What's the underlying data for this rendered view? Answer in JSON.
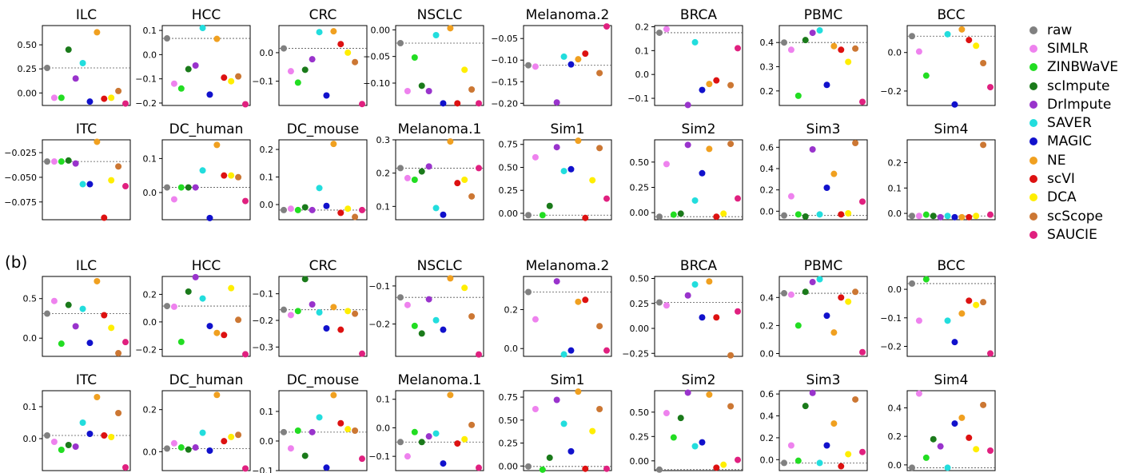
{
  "legend": {
    "items": [
      {
        "name": "raw",
        "color": "#808080"
      },
      {
        "name": "SIMLR",
        "color": "#ee82ee"
      },
      {
        "name": "ZINBWaVE",
        "color": "#22dd22"
      },
      {
        "name": "scImpute",
        "color": "#1a7a1a"
      },
      {
        "name": "DrImpute",
        "color": "#9933cc"
      },
      {
        "name": "SAVER",
        "color": "#22dddd"
      },
      {
        "name": "MAGIC",
        "color": "#1111cc"
      },
      {
        "name": "NE",
        "color": "#f0a020"
      },
      {
        "name": "scVI",
        "color": "#dd1111"
      },
      {
        "name": "DCA",
        "color": "#ffee00"
      },
      {
        "name": "scScope",
        "color": "#cc7733"
      },
      {
        "name": "SAUCIE",
        "color": "#e0207f"
      }
    ]
  },
  "section_b_label": "(b)",
  "chart_data": [
    {
      "type": "scatter",
      "section": "a",
      "title": "ILC",
      "ylim": [
        -0.13,
        0.7
      ],
      "yticks": [
        {
          "v": 0.5,
          "label": "0.50"
        },
        {
          "v": 0.25,
          "label": "0.25"
        },
        {
          "v": 0.0,
          "label": "0.00"
        }
      ],
      "values": [
        0.26,
        -0.05,
        -0.05,
        0.45,
        0.15,
        0.31,
        -0.09,
        0.63,
        -0.06,
        -0.05,
        0.02,
        -0.11
      ]
    },
    {
      "type": "scatter",
      "section": "a",
      "title": "HCC",
      "ylim": [
        -0.21,
        0.12
      ],
      "yticks": [
        {
          "v": 0.1,
          "label": "0.1"
        },
        {
          "v": 0.0,
          "label": "0.0"
        },
        {
          "v": -0.1,
          "label": "−0.1"
        },
        {
          "v": -0.2,
          "label": "−0.2"
        }
      ],
      "values": [
        0.067,
        -0.12,
        -0.14,
        -0.06,
        -0.045,
        0.11,
        -0.165,
        0.065,
        -0.095,
        -0.11,
        -0.09,
        -0.205
      ]
    },
    {
      "type": "scatter",
      "section": "a",
      "title": "CRC",
      "ylim": [
        -0.185,
        0.095
      ],
      "yticks": [
        {
          "v": 0.0,
          "label": "0.0"
        },
        {
          "v": -0.1,
          "label": "−0.1"
        }
      ],
      "values": [
        0.015,
        -0.065,
        -0.105,
        -0.06,
        -0.023,
        0.072,
        -0.15,
        0.075,
        0.03,
        0.0,
        -0.033,
        -0.18
      ]
    },
    {
      "type": "scatter",
      "section": "a",
      "title": "NSCLC",
      "ylim": [
        -0.142,
        0.008
      ],
      "yticks": [
        {
          "v": 0.0,
          "label": "0.00"
        },
        {
          "v": -0.05,
          "label": "−0.05"
        },
        {
          "v": -0.1,
          "label": "−0.10"
        }
      ],
      "values": [
        -0.025,
        -0.115,
        -0.052,
        -0.105,
        -0.115,
        -0.01,
        -0.138,
        0.003,
        -0.138,
        -0.075,
        -0.112,
        -0.138
      ]
    },
    {
      "type": "scatter",
      "section": "a",
      "title": "Melanoma.2",
      "ylim": [
        -0.205,
        -0.02
      ],
      "yticks": [
        {
          "v": -0.05,
          "label": "−0.05"
        },
        {
          "v": -0.1,
          "label": "−0.10"
        },
        {
          "v": -0.15,
          "label": "−0.15"
        },
        {
          "v": -0.2,
          "label": "−0.20"
        }
      ],
      "values": [
        -0.112,
        -0.115,
        null,
        null,
        -0.198,
        -0.092,
        -0.11,
        -0.098,
        -0.085,
        null,
        -0.13,
        -0.022
      ]
    },
    {
      "type": "scatter",
      "section": "a",
      "title": "BRCA",
      "ylim": [
        -0.13,
        0.205
      ],
      "yticks": [
        {
          "v": 0.2,
          "label": "0.2"
        },
        {
          "v": 0.1,
          "label": "0.1"
        },
        {
          "v": 0.0,
          "label": "0.0"
        },
        {
          "v": -0.1,
          "label": "−0.1"
        }
      ],
      "values": [
        0.175,
        0.19,
        null,
        null,
        -0.128,
        0.135,
        -0.065,
        -0.04,
        -0.025,
        null,
        -0.045,
        0.11
      ]
    },
    {
      "type": "scatter",
      "section": "a",
      "title": "PBMC",
      "ylim": [
        0.14,
        0.47
      ],
      "yticks": [
        {
          "v": 0.4,
          "label": "0.4"
        },
        {
          "v": 0.3,
          "label": "0.3"
        },
        {
          "v": 0.2,
          "label": "0.2"
        }
      ],
      "values": [
        0.4,
        0.37,
        0.18,
        0.41,
        0.44,
        0.45,
        0.225,
        0.385,
        0.37,
        0.32,
        0.375,
        0.155
      ]
    },
    {
      "type": "scatter",
      "section": "a",
      "title": "BCC",
      "ylim": [
        -0.275,
        0.14
      ],
      "yticks": [
        {
          "v": 0.0,
          "label": "0.0"
        },
        {
          "v": -0.2,
          "label": "−0.2"
        }
      ],
      "values": [
        0.085,
        0.005,
        -0.12,
        null,
        null,
        0.095,
        -0.27,
        0.12,
        0.065,
        0.035,
        -0.055,
        -0.18
      ]
    },
    {
      "type": "scatter",
      "section": "a",
      "title": "ITC",
      "ylim": [
        -0.093,
        -0.012
      ],
      "yticks": [
        {
          "v": -0.025,
          "label": "−0.025"
        },
        {
          "v": -0.05,
          "label": "−0.050"
        },
        {
          "v": -0.075,
          "label": "−0.075"
        }
      ],
      "values": [
        -0.034,
        -0.034,
        -0.034,
        -0.033,
        -0.036,
        -0.057,
        -0.057,
        -0.014,
        -0.091,
        -0.053,
        -0.039,
        -0.059
      ]
    },
    {
      "type": "scatter",
      "section": "a",
      "title": "DC_human",
      "ylim": [
        -0.08,
        0.155
      ],
      "yticks": [
        {
          "v": 0.1,
          "label": "0.1"
        },
        {
          "v": 0.0,
          "label": "0.0"
        }
      ],
      "values": [
        0.015,
        -0.02,
        0.015,
        0.015,
        0.015,
        0.065,
        -0.075,
        0.14,
        0.05,
        0.05,
        0.045,
        -0.025
      ]
    },
    {
      "type": "scatter",
      "section": "a",
      "title": "DC_mouse",
      "ylim": [
        -0.055,
        0.235
      ],
      "yticks": [
        {
          "v": 0.2,
          "label": "0.2"
        },
        {
          "v": 0.1,
          "label": "0.1"
        },
        {
          "v": 0.0,
          "label": "0.0"
        }
      ],
      "values": [
        -0.02,
        -0.015,
        -0.02,
        -0.01,
        -0.02,
        0.06,
        -0.005,
        0.22,
        -0.03,
        -0.015,
        -0.045,
        -0.02
      ]
    },
    {
      "type": "scatter",
      "section": "a",
      "title": "Melanoma.1",
      "ylim": [
        0.06,
        0.3
      ],
      "yticks": [
        {
          "v": 0.3,
          "label": "0.3"
        },
        {
          "v": 0.2,
          "label": "0.2"
        },
        {
          "v": 0.1,
          "label": "0.1"
        }
      ],
      "values": [
        0.215,
        0.185,
        0.18,
        0.205,
        0.22,
        0.095,
        0.075,
        0.295,
        0.17,
        0.18,
        0.13,
        0.215
      ]
    },
    {
      "type": "scatter",
      "section": "a",
      "title": "Sim1",
      "ylim": [
        -0.07,
        0.8
      ],
      "yticks": [
        {
          "v": 0.75,
          "label": "0.75"
        },
        {
          "v": 0.5,
          "label": "0.50"
        },
        {
          "v": 0.25,
          "label": "0.25"
        },
        {
          "v": 0.0,
          "label": "0.00"
        }
      ],
      "values": [
        -0.02,
        0.61,
        -0.02,
        0.08,
        0.72,
        0.46,
        0.48,
        0.79,
        -0.05,
        0.36,
        0.71,
        0.16
      ]
    },
    {
      "type": "scatter",
      "section": "a",
      "title": "Sim2",
      "ylim": [
        -0.07,
        0.72
      ],
      "yticks": [
        {
          "v": 0.5,
          "label": "0.50"
        },
        {
          "v": 0.25,
          "label": "0.25"
        },
        {
          "v": 0.0,
          "label": "0.00"
        }
      ],
      "values": [
        -0.04,
        0.48,
        -0.02,
        -0.01,
        0.67,
        0.12,
        0.39,
        0.63,
        -0.04,
        -0.01,
        0.68,
        0.14
      ]
    },
    {
      "type": "scatter",
      "section": "a",
      "title": "Sim3",
      "ylim": [
        -0.08,
        0.67
      ],
      "yticks": [
        {
          "v": 0.6,
          "label": "0.6"
        },
        {
          "v": 0.4,
          "label": "0.4"
        },
        {
          "v": 0.2,
          "label": "0.2"
        },
        {
          "v": 0.0,
          "label": "0.0"
        }
      ],
      "values": [
        -0.04,
        0.14,
        -0.03,
        -0.05,
        0.58,
        -0.03,
        0.22,
        0.35,
        -0.03,
        -0.02,
        0.64,
        0.09
      ]
    },
    {
      "type": "scatter",
      "section": "a",
      "title": "Sim4",
      "ylim": [
        -0.025,
        0.29
      ],
      "yticks": [
        {
          "v": 0.2,
          "label": "0.2"
        },
        {
          "v": 0.1,
          "label": "0.1"
        },
        {
          "v": 0.0,
          "label": "0.0"
        }
      ],
      "values": [
        -0.01,
        -0.01,
        -0.005,
        -0.01,
        -0.015,
        -0.01,
        -0.015,
        -0.015,
        -0.015,
        -0.01,
        0.27,
        -0.005
      ]
    },
    {
      "type": "scatter",
      "section": "b",
      "title": "ILC",
      "ylim": [
        -0.23,
        0.78
      ],
      "yticks": [
        {
          "v": 0.5,
          "label": "0.5"
        },
        {
          "v": 0.0,
          "label": "0.0"
        }
      ],
      "values": [
        0.31,
        0.47,
        -0.07,
        0.42,
        0.15,
        0.37,
        -0.06,
        0.72,
        0.29,
        0.13,
        -0.19,
        -0.05
      ]
    },
    {
      "type": "scatter",
      "section": "b",
      "title": "HCC",
      "ylim": [
        -0.25,
        0.33
      ],
      "yticks": [
        {
          "v": 0.2,
          "label": "0.2"
        },
        {
          "v": 0.0,
          "label": "0.0"
        },
        {
          "v": -0.2,
          "label": "−0.2"
        }
      ],
      "values": [
        0.115,
        0.11,
        -0.145,
        0.22,
        0.325,
        0.17,
        -0.03,
        -0.08,
        -0.095,
        0.245,
        0.015,
        -0.235
      ]
    },
    {
      "type": "scatter",
      "section": "b",
      "title": "CRC",
      "ylim": [
        -0.335,
        -0.035
      ],
      "yticks": [
        {
          "v": -0.1,
          "label": "−0.1"
        },
        {
          "v": -0.2,
          "label": "−0.2"
        },
        {
          "v": -0.3,
          "label": "−0.3"
        }
      ],
      "values": [
        -0.16,
        -0.18,
        -0.165,
        -0.045,
        -0.14,
        -0.17,
        -0.23,
        -0.15,
        -0.235,
        -0.165,
        -0.175,
        -0.325
      ]
    },
    {
      "type": "scatter",
      "section": "b",
      "title": "NSCLC",
      "ylim": [
        -0.285,
        -0.075
      ],
      "yticks": [
        {
          "v": -0.1,
          "label": "−0.1"
        },
        {
          "v": -0.2,
          "label": "−0.2"
        }
      ],
      "values": [
        -0.13,
        -0.15,
        -0.205,
        -0.225,
        -0.135,
        -0.19,
        -0.215,
        -0.08,
        null,
        -0.105,
        -0.18,
        -0.28
      ]
    },
    {
      "type": "scatter",
      "section": "b",
      "title": "Melanoma.2",
      "ylim": [
        -0.04,
        0.37
      ],
      "yticks": [
        {
          "v": 0.2,
          "label": "0.2"
        },
        {
          "v": 0.0,
          "label": "0.0"
        }
      ],
      "values": [
        0.29,
        0.15,
        null,
        null,
        0.345,
        -0.03,
        -0.01,
        0.24,
        0.25,
        null,
        0.115,
        -0.01
      ]
    },
    {
      "type": "scatter",
      "section": "b",
      "title": "BRCA",
      "ylim": [
        -0.28,
        0.52
      ],
      "yticks": [
        {
          "v": 0.5,
          "label": "0.50"
        },
        {
          "v": 0.25,
          "label": "0.25"
        },
        {
          "v": 0.0,
          "label": "0.00"
        },
        {
          "v": -0.25,
          "label": "−0.25"
        }
      ],
      "values": [
        0.26,
        0.23,
        null,
        null,
        0.33,
        0.44,
        0.11,
        0.47,
        0.11,
        null,
        -0.27,
        0.17
      ]
    },
    {
      "type": "scatter",
      "section": "b",
      "title": "PBMC",
      "ylim": [
        -0.02,
        0.55
      ],
      "yticks": [
        {
          "v": 0.4,
          "label": "0.4"
        },
        {
          "v": 0.2,
          "label": "0.2"
        },
        {
          "v": 0.0,
          "label": "0.0"
        }
      ],
      "values": [
        0.43,
        0.42,
        0.2,
        0.44,
        0.51,
        0.53,
        0.27,
        0.15,
        0.4,
        0.37,
        0.44,
        0.01
      ]
    },
    {
      "type": "scatter",
      "section": "b",
      "title": "BCC",
      "ylim": [
        -0.235,
        0.045
      ],
      "yticks": [
        {
          "v": 0.0,
          "label": "0.0"
        },
        {
          "v": -0.1,
          "label": "−0.1"
        },
        {
          "v": -0.2,
          "label": "−0.2"
        }
      ],
      "values": [
        0.02,
        -0.11,
        0.035,
        null,
        null,
        -0.11,
        -0.185,
        -0.085,
        -0.04,
        -0.055,
        -0.045,
        -0.225
      ]
    },
    {
      "type": "scatter",
      "section": "b",
      "title": "ITC",
      "ylim": [
        -0.1,
        0.15
      ],
      "yticks": [
        {
          "v": 0.1,
          "label": "0.1"
        },
        {
          "v": 0.0,
          "label": "0.0"
        }
      ],
      "values": [
        0.01,
        -0.01,
        -0.035,
        -0.02,
        -0.025,
        0.05,
        0.015,
        0.13,
        0.01,
        0.005,
        0.08,
        -0.09
      ]
    },
    {
      "type": "scatter",
      "section": "b",
      "title": "DC_human",
      "ylim": [
        -0.09,
        0.29
      ],
      "yticks": [
        {
          "v": 0.2,
          "label": "0.2"
        },
        {
          "v": 0.0,
          "label": "0.0"
        }
      ],
      "values": [
        0.015,
        0.04,
        0.02,
        0.01,
        0.02,
        0.09,
        0.005,
        0.27,
        0.05,
        0.07,
        0.08,
        -0.08
      ]
    },
    {
      "type": "scatter",
      "section": "b",
      "title": "DC_mouse",
      "ylim": [
        -0.1,
        0.17
      ],
      "yticks": [
        {
          "v": 0.1,
          "label": "0.1"
        },
        {
          "v": 0.0,
          "label": "0.0"
        },
        {
          "v": -0.1,
          "label": "−0.1"
        }
      ],
      "values": [
        0.03,
        -0.025,
        0.035,
        -0.05,
        0.03,
        0.08,
        -0.09,
        0.155,
        0.06,
        0.04,
        0.035,
        -0.06
      ]
    },
    {
      "type": "scatter",
      "section": "b",
      "title": "Melanoma.1",
      "ylim": [
        -0.15,
        0.13
      ],
      "yticks": [
        {
          "v": 0.1,
          "label": "0.1"
        },
        {
          "v": 0.0,
          "label": "0.0"
        },
        {
          "v": -0.1,
          "label": "−0.1"
        }
      ],
      "values": [
        -0.05,
        -0.1,
        -0.015,
        -0.05,
        -0.03,
        -0.02,
        -0.125,
        0.115,
        -0.055,
        -0.04,
        0.01,
        -0.14
      ]
    },
    {
      "type": "scatter",
      "section": "b",
      "title": "Sim1",
      "ylim": [
        -0.05,
        0.82
      ],
      "yticks": [
        {
          "v": 0.75,
          "label": "0.75"
        },
        {
          "v": 0.5,
          "label": "0.50"
        },
        {
          "v": 0.25,
          "label": "0.25"
        },
        {
          "v": 0.0,
          "label": "0.00"
        }
      ],
      "values": [
        -0.005,
        0.62,
        -0.04,
        0.09,
        0.72,
        0.46,
        0.16,
        0.81,
        -0.03,
        0.38,
        0.62,
        -0.03
      ]
    },
    {
      "type": "scatter",
      "section": "b",
      "title": "Sim2",
      "ylim": [
        -0.1,
        0.72
      ],
      "yticks": [
        {
          "v": 0.5,
          "label": "0.50"
        },
        {
          "v": 0.25,
          "label": "0.25"
        },
        {
          "v": 0.0,
          "label": "0.00"
        }
      ],
      "values": [
        -0.09,
        0.49,
        0.24,
        0.44,
        0.7,
        0.15,
        0.19,
        0.68,
        -0.07,
        -0.04,
        0.56,
        0.01
      ]
    },
    {
      "type": "scatter",
      "section": "b",
      "title": "Sim3",
      "ylim": [
        -0.1,
        0.63
      ],
      "yticks": [
        {
          "v": 0.6,
          "label": "0.6"
        },
        {
          "v": 0.4,
          "label": "0.4"
        },
        {
          "v": 0.2,
          "label": "0.2"
        },
        {
          "v": 0.0,
          "label": "0.0"
        }
      ],
      "values": [
        -0.03,
        0.13,
        -0.01,
        0.49,
        0.61,
        -0.03,
        0.13,
        0.33,
        -0.06,
        0.05,
        0.55,
        0.07
      ]
    },
    {
      "type": "scatter",
      "section": "b",
      "title": "Sim4",
      "ylim": [
        -0.04,
        0.52
      ],
      "yticks": [
        {
          "v": 0.4,
          "label": "0.4"
        },
        {
          "v": 0.2,
          "label": "0.2"
        },
        {
          "v": 0.0,
          "label": "0.0"
        }
      ],
      "values": [
        -0.02,
        0.5,
        0.05,
        0.18,
        0.13,
        -0.02,
        0.29,
        0.33,
        0.19,
        0.11,
        0.42,
        0.1
      ]
    }
  ]
}
